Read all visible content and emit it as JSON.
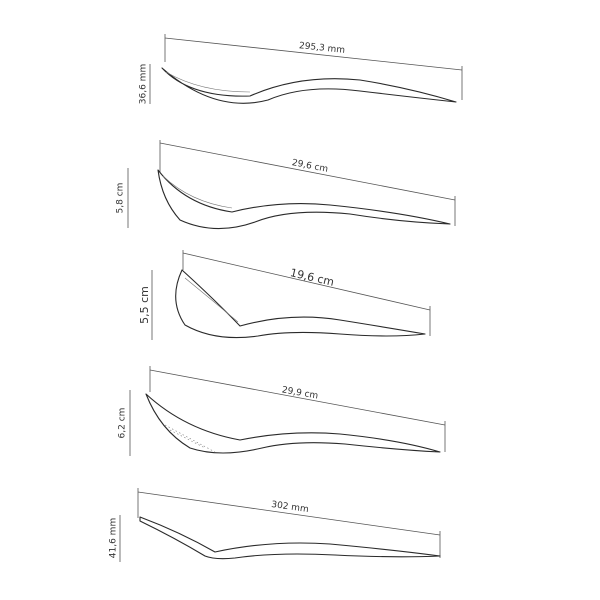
{
  "utensils": [
    {
      "length": "295,3 mm",
      "height": "36,6 mm"
    },
    {
      "length": "29,6 cm",
      "height": "5,8 cm"
    },
    {
      "length": "19,6 cm",
      "height": "5,5 cm"
    },
    {
      "length": "29,9 cm",
      "height": "6,2 cm"
    },
    {
      "length": "302 mm",
      "height": "41,6 mm"
    }
  ]
}
